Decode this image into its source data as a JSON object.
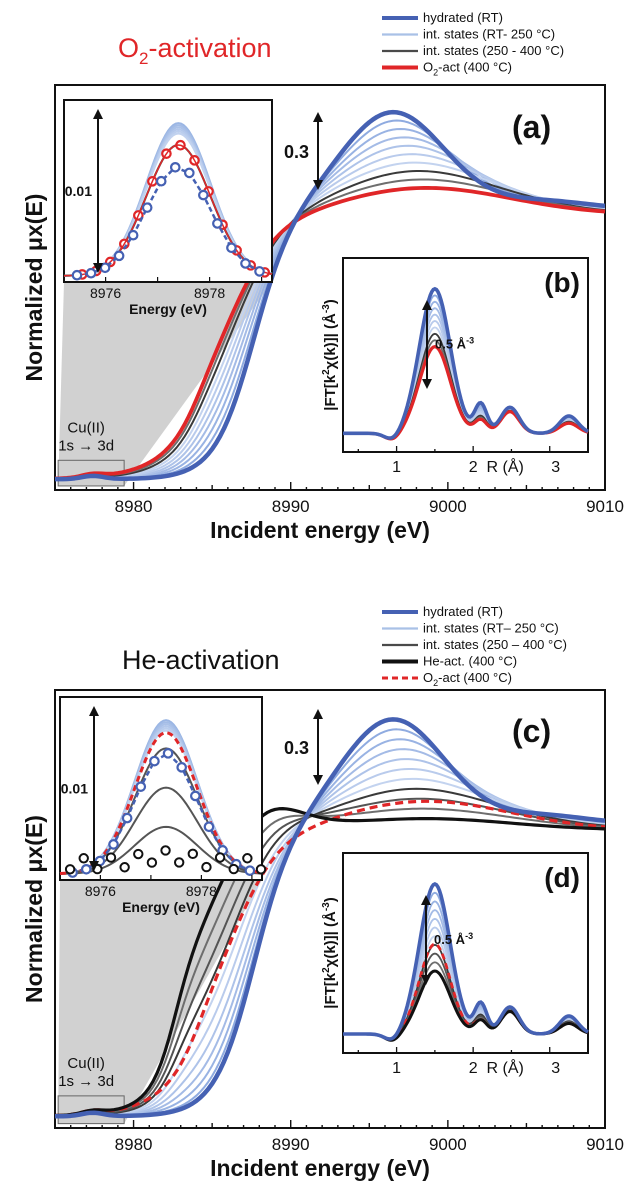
{
  "colors": {
    "hydrated": "#4561b3",
    "int_light": "#a9c1e6",
    "int_dark": "#4a4a4a",
    "o2": "#e02628",
    "he": "#111111",
    "title_top": "#e02628",
    "title_bottom": "#111111"
  },
  "chart_data": [
    {
      "id": "top",
      "type": "line",
      "title": "O2-activation",
      "title_main": "O",
      "title_sub": "2",
      "title_rest": "-activation",
      "legend": [
        {
          "label": "hydrated (RT)",
          "color_key": "hydrated",
          "style": "thick"
        },
        {
          "label": "int. states (RT- 250 °C)",
          "color_key": "int_light",
          "style": "solid"
        },
        {
          "label": "int. states (250 - 400 °C)",
          "color_key": "int_dark",
          "style": "solid"
        },
        {
          "label": "O2-act (400 °C)",
          "pre": "O",
          "sub": "2",
          "post": "-act (400 °C)",
          "color_key": "o2",
          "style": "thick"
        }
      ],
      "xlabel": "Incident energy (eV)",
      "ylabel": "Normalized μx(E)",
      "xlim": [
        8975,
        9010
      ],
      "xticks": [
        8980,
        8990,
        9000,
        9010
      ],
      "panel_label": "(a)",
      "scale_bar_label": "0.3",
      "preedge_label_1": "Cu(II)",
      "preedge_label_2": "1s → 3d",
      "series": [
        {
          "name": "hydrated (RT)",
          "peak_energy": 8996.5,
          "peak_mu": 1.36,
          "value_9010": 1.05
        },
        {
          "name": "int. states (RT- 250 °C)",
          "count": 6
        },
        {
          "name": "int. states (250 - 400 °C)",
          "count": 2
        },
        {
          "name": "O2-act (400 °C)",
          "peak_energy": 8998.5,
          "peak_mu": 1.1,
          "value_9010": 1.02
        }
      ],
      "inset_preedge": {
        "xlabel": "Energy (eV)",
        "xticks": [
          8976,
          8978
        ],
        "xlim": [
          8975.2,
          8979.2
        ],
        "scale_label": "0.01",
        "peak_energy": 8977.4
      },
      "inset_ft": {
        "panel_label": "(b)",
        "ylabel": "|FT[k²χ(k)]| (Å⁻³)",
        "ylabel_a": "|FT[k",
        "ylabel_sup1": "2",
        "ylabel_b": "χ(k)]| (Å",
        "ylabel_sup2": "-3",
        "ylabel_c": ")",
        "xlabel": "R (Å)",
        "xticks": [
          1,
          2,
          3
        ],
        "xlim": [
          0.3,
          3.5
        ],
        "scale_label": "0.5 Å",
        "scale_sup": "-3",
        "peak_R": 1.45
      }
    },
    {
      "id": "bottom",
      "type": "line",
      "title": "He-activation",
      "legend": [
        {
          "label": "hydrated (RT)",
          "color_key": "hydrated",
          "style": "thick"
        },
        {
          "label": "int. states (RT– 250 °C)",
          "color_key": "int_light",
          "style": "solid"
        },
        {
          "label": "int. states (250 – 400 °C)",
          "color_key": "int_dark",
          "style": "solid"
        },
        {
          "label": "He-act. (400 °C)",
          "color_key": "he",
          "style": "thick"
        },
        {
          "label": "O2-act (400 °C)",
          "pre": "O",
          "sub": "2",
          "post": "-act (400 °C)",
          "color_key": "o2",
          "style": "dashed"
        }
      ],
      "xlabel": "Incident energy (eV)",
      "ylabel": "Normalized μx(E)",
      "xlim": [
        8975,
        9010
      ],
      "xticks": [
        8980,
        8990,
        9000,
        9010
      ],
      "panel_label": "(c)",
      "scale_bar_label": "0.3",
      "preedge_label_1": "Cu(II)",
      "preedge_label_2": "1s → 3d",
      "series": [
        {
          "name": "hydrated (RT)",
          "peak_energy": 8996.5,
          "peak_mu": 1.36
        },
        {
          "name": "int. states (RT– 250 °C)",
          "count": 6
        },
        {
          "name": "int. states (250 – 400 °C)",
          "count": 3
        },
        {
          "name": "He-act. (400 °C)",
          "peak_energy": 8998.5,
          "peak_mu": 1.05
        },
        {
          "name": "O2-act (400 °C)",
          "peak_energy": 8998.5,
          "peak_mu": 1.12
        }
      ],
      "inset_preedge": {
        "xlabel": "Energy (eV)",
        "xticks": [
          8976,
          8978
        ],
        "xlim": [
          8975.2,
          8979.2
        ],
        "scale_label": "0.01",
        "peak_energy": 8977.3
      },
      "inset_ft": {
        "panel_label": "(d)",
        "ylabel": "|FT[k²χ(k)]| (Å⁻³)",
        "ylabel_a": "|FT[k",
        "ylabel_sup1": "2",
        "ylabel_b": "χ(k)]| (Å",
        "ylabel_sup2": "-3",
        "ylabel_c": ")",
        "xlabel": "R (Å)",
        "xticks": [
          1,
          2,
          3
        ],
        "xlim": [
          0.3,
          3.5
        ],
        "scale_label": "0.5 Å",
        "scale_sup": "-3",
        "peak_R": 1.45
      }
    }
  ]
}
